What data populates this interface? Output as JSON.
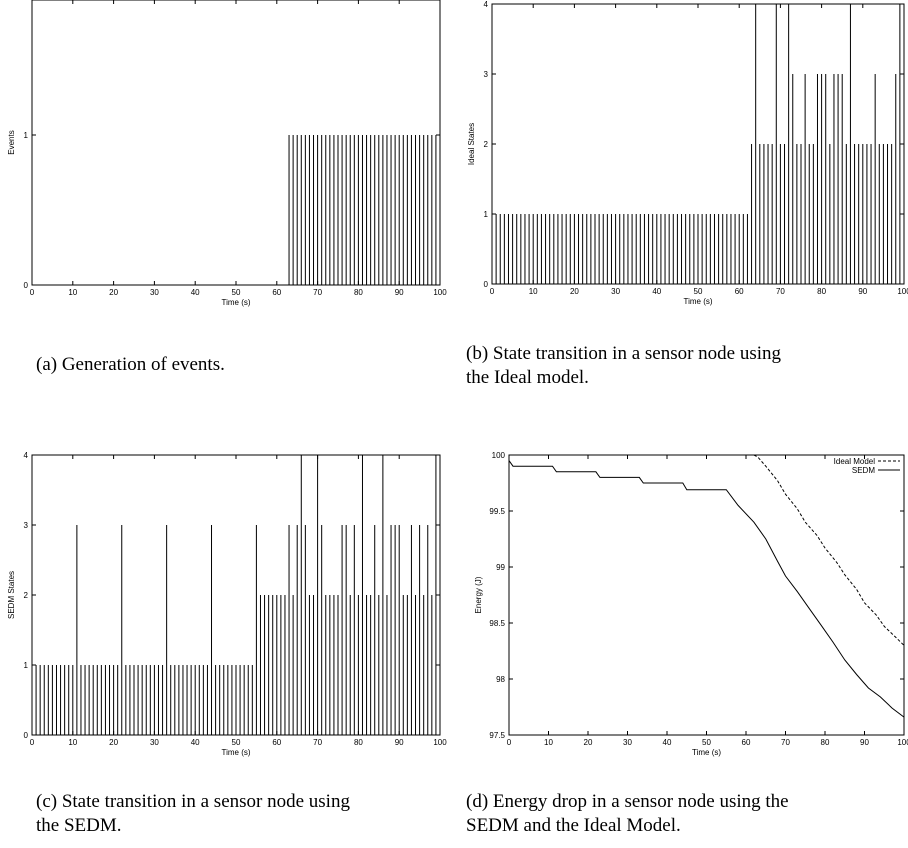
{
  "captions": {
    "a": "(a) Generation of events.",
    "b_line1": "(b) State transition in a sensor node using",
    "b_line2": "the Ideal model.",
    "c_line1": "(c) State transition in a sensor node using",
    "c_line2": "the SEDM.",
    "d_line1": "(d) Energy drop in a sensor node using the",
    "d_line2": "SEDM and the Ideal Model."
  },
  "chart_data": [
    {
      "id": "a",
      "type": "bar",
      "title": "",
      "xlabel": "Time (s)",
      "ylabel": "Events",
      "xlim": [
        0,
        100
      ],
      "ylim": [
        0,
        1.9
      ],
      "xticks": [
        0,
        10,
        20,
        30,
        40,
        50,
        60,
        70,
        80,
        90,
        100
      ],
      "yticks": [
        0,
        1
      ],
      "grid": false,
      "event_spikes": {
        "start": 63,
        "end": 100,
        "step": 1,
        "value": 1
      }
    },
    {
      "id": "b",
      "type": "bar",
      "title": "",
      "xlabel": "Time (s)",
      "ylabel": "Ideal States",
      "xlim": [
        0,
        100
      ],
      "ylim": [
        0,
        4
      ],
      "xticks": [
        0,
        10,
        20,
        30,
        40,
        50,
        60,
        70,
        80,
        90,
        100
      ],
      "yticks": [
        0,
        1,
        2,
        3,
        4
      ],
      "grid": false,
      "spikes": [
        {
          "from": 0,
          "to": 62,
          "step": 1,
          "value": 1
        },
        {
          "from": 63,
          "to": 100,
          "step": 1,
          "value": 2
        }
      ],
      "spikes_level3": [
        72,
        73,
        76,
        79,
        80,
        81,
        83,
        84,
        85,
        93,
        98
      ],
      "spikes_level4": [
        64,
        69,
        72,
        87,
        99
      ]
    },
    {
      "id": "c",
      "type": "bar",
      "title": "",
      "xlabel": "Time (s)",
      "ylabel": "SEDM States",
      "xlim": [
        0,
        100
      ],
      "ylim": [
        0,
        4
      ],
      "xticks": [
        0,
        10,
        20,
        30,
        40,
        50,
        60,
        70,
        80,
        90,
        100
      ],
      "yticks": [
        0,
        1,
        2,
        3,
        4
      ],
      "grid": false,
      "spikes": [
        {
          "from": 0,
          "to": 54,
          "step": 1,
          "value": 1
        },
        {
          "from": 55,
          "to": 100,
          "step": 1,
          "value": 2
        }
      ],
      "spikes_level3": [
        11,
        22,
        33,
        44,
        55,
        63,
        65,
        67,
        71,
        76,
        77,
        79,
        84,
        88,
        89,
        90,
        93,
        95,
        97
      ],
      "spikes_level4": [
        66,
        70,
        81,
        86,
        99
      ]
    },
    {
      "id": "d",
      "type": "line",
      "title": "",
      "xlabel": "Time (s)",
      "ylabel": "Energy (J)",
      "xlim": [
        0,
        100
      ],
      "ylim": [
        97.5,
        100
      ],
      "xticks": [
        0,
        10,
        20,
        30,
        40,
        50,
        60,
        70,
        80,
        90,
        100
      ],
      "yticks": [
        97.5,
        98,
        98.5,
        99,
        99.5,
        100
      ],
      "yticklabels": [
        "97.5",
        "98",
        "98.5",
        "99",
        "99.5",
        "100"
      ],
      "grid": false,
      "legend": "top-right",
      "series": [
        {
          "name": "Ideal Model",
          "style": "dashed",
          "x": [
            0,
            62,
            63,
            65,
            68,
            70,
            73,
            75,
            78,
            80,
            83,
            85,
            88,
            90,
            93,
            95,
            98,
            100
          ],
          "y": [
            100,
            100,
            99.98,
            99.9,
            99.77,
            99.65,
            99.52,
            99.4,
            99.28,
            99.17,
            99.04,
            98.93,
            98.8,
            98.68,
            98.57,
            98.47,
            98.37,
            98.3
          ]
        },
        {
          "name": "SEDM",
          "style": "solid",
          "x": [
            0,
            1,
            11,
            12,
            22,
            23,
            33,
            34,
            44,
            45,
            55,
            58,
            62,
            65,
            68,
            70,
            73,
            76,
            79,
            82,
            85,
            88,
            91,
            94,
            97,
            100
          ],
          "y": [
            99.95,
            99.9,
            99.9,
            99.85,
            99.85,
            99.8,
            99.8,
            99.75,
            99.75,
            99.69,
            99.69,
            99.55,
            99.4,
            99.25,
            99.05,
            98.92,
            98.78,
            98.63,
            98.48,
            98.33,
            98.17,
            98.04,
            97.92,
            97.84,
            97.74,
            97.66
          ]
        }
      ]
    }
  ]
}
